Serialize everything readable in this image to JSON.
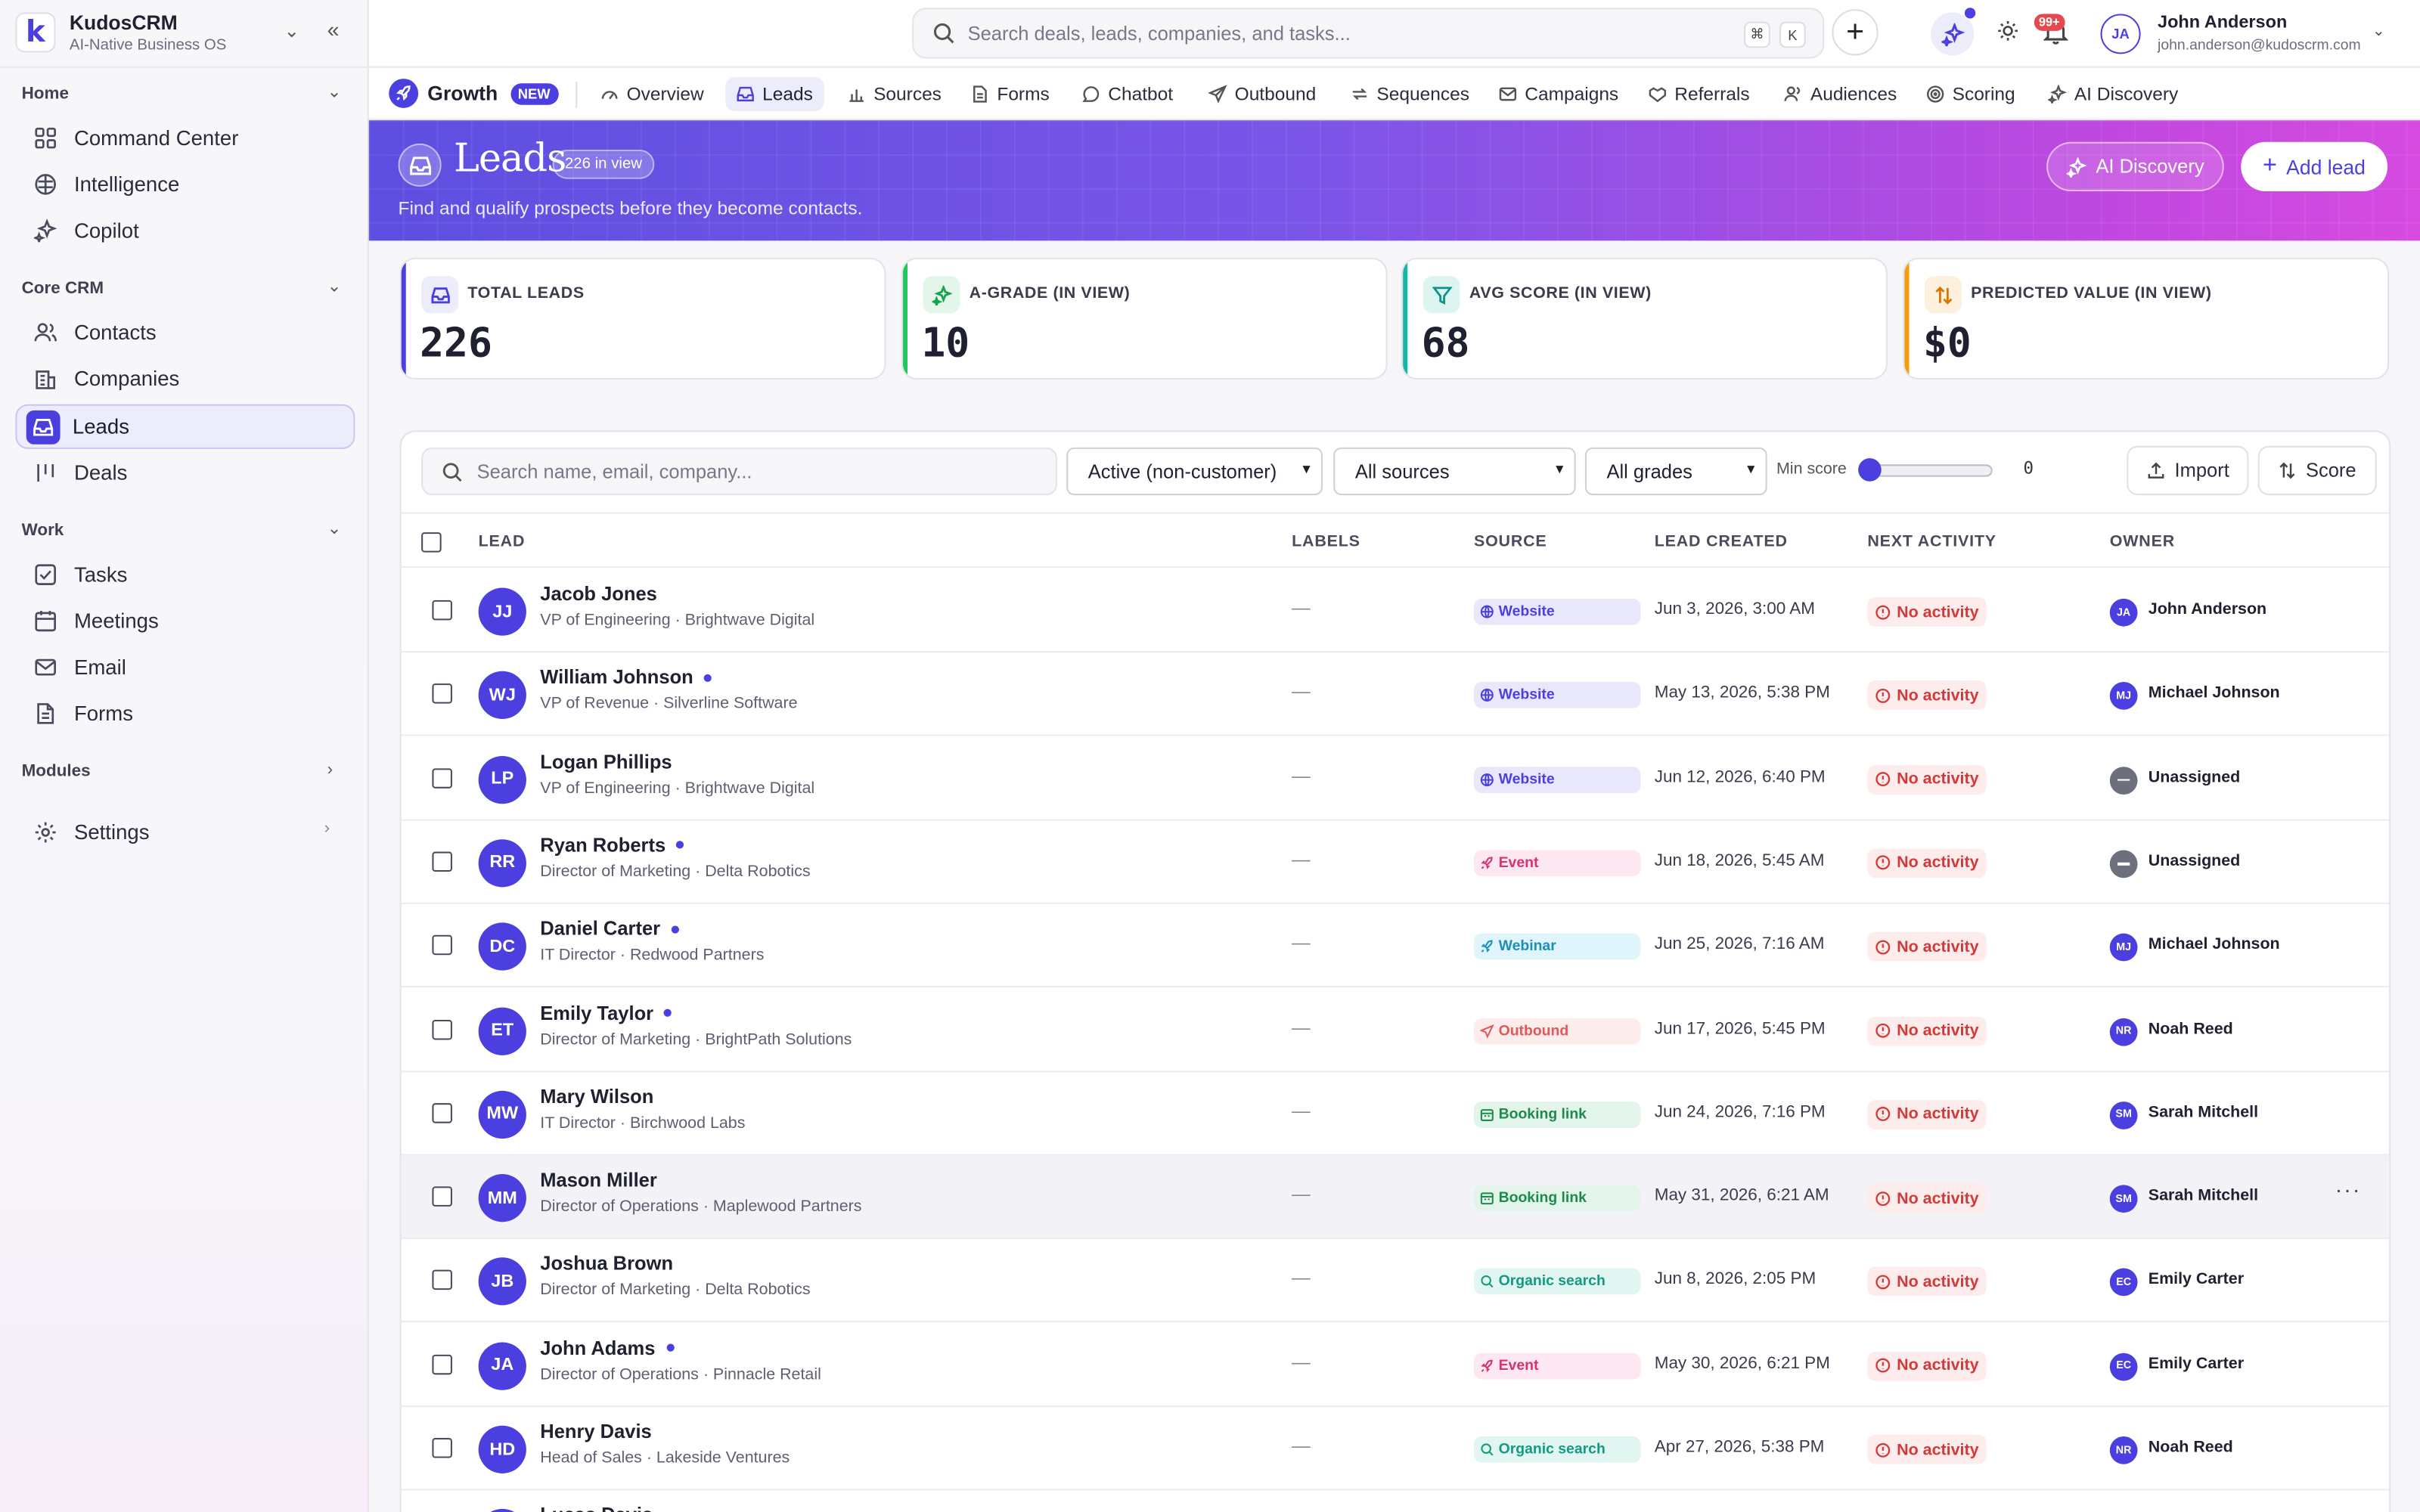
{
  "brand": {
    "name": "KudosCRM",
    "subtitle": "AI-Native Business OS",
    "logo_letter": "k"
  },
  "sidebar": {
    "sections": {
      "home": "Home",
      "core": "Core CRM",
      "work": "Work",
      "modules": "Modules"
    },
    "home_items": [
      "Command Center",
      "Intelligence",
      "Copilot"
    ],
    "core_items": [
      "Contacts",
      "Companies",
      "Leads",
      "Deals"
    ],
    "work_items": [
      "Tasks",
      "Meetings",
      "Email",
      "Forms"
    ],
    "settings": "Settings",
    "active": "Leads"
  },
  "topbar": {
    "search_placeholder": "Search deals, leads, companies, and tasks...",
    "kbd1": "⌘",
    "kbd2": "K",
    "notif_count": "99+",
    "user_initials": "JA",
    "user_name": "John Anderson",
    "user_email": "john.anderson@kudoscrm.com"
  },
  "module": {
    "name": "Growth",
    "badge": "NEW",
    "tabs": [
      "Overview",
      "Leads",
      "Sources",
      "Forms",
      "Chatbot",
      "Outbound",
      "Sequences",
      "Campaigns",
      "Referrals",
      "Audiences",
      "Scoring",
      "AI Discovery"
    ],
    "active_tab": "Leads"
  },
  "banner": {
    "title": "Leads",
    "count": "226 in view",
    "subtitle": "Find and qualify prospects before they become contacts.",
    "ai_button": "AI Discovery",
    "add_button": "Add lead"
  },
  "kpis": [
    {
      "label": "TOTAL LEADS",
      "value": "226",
      "color": "#4c3fe0"
    },
    {
      "label": "A-GRADE (IN VIEW)",
      "value": "10",
      "color": "#16a34a"
    },
    {
      "label": "AVG SCORE (IN VIEW)",
      "value": "68",
      "color": "#0d9488"
    },
    {
      "label": "PREDICTED VALUE (IN VIEW)",
      "value": "$0",
      "color": "#d97706"
    }
  ],
  "filters": {
    "search_placeholder": "Search name, email, company...",
    "status": "Active (non-customer)",
    "sources": "All sources",
    "grades": "All grades",
    "min_score_label": "Min score",
    "min_score_value": "0",
    "import_label": "Import",
    "score_label": "Score"
  },
  "table": {
    "columns": [
      "LEAD",
      "LABELS",
      "SOURCE",
      "LEAD CREATED",
      "NEXT ACTIVITY",
      "OWNER"
    ],
    "rows": [
      {
        "initials": "JJ",
        "name": "Jacob Jones",
        "dot": false,
        "title": "VP of Engineering · Brightwave Digital",
        "labels": "—",
        "source": "Website",
        "created": "Jun 3, 2026, 3:00 AM",
        "activity": "No activity",
        "owner_initials": "JA",
        "owner": "John Anderson"
      },
      {
        "initials": "WJ",
        "name": "William Johnson",
        "dot": true,
        "title": "VP of Revenue · Silverline Software",
        "labels": "—",
        "source": "Website",
        "created": "May 13, 2026, 5:38 PM",
        "activity": "No activity",
        "owner_initials": "MJ",
        "owner": "Michael Johnson"
      },
      {
        "initials": "LP",
        "name": "Logan Phillips",
        "dot": false,
        "title": "VP of Engineering · Brightwave Digital",
        "labels": "—",
        "source": "Website",
        "created": "Jun 12, 2026, 6:40 PM",
        "activity": "No activity",
        "owner_initials": "",
        "owner": "Unassigned"
      },
      {
        "initials": "RR",
        "name": "Ryan Roberts",
        "dot": true,
        "title": "Director of Marketing · Delta Robotics",
        "labels": "—",
        "source": "Event",
        "created": "Jun 18, 2026, 5:45 AM",
        "activity": "No activity",
        "owner_initials": "",
        "owner": "Unassigned"
      },
      {
        "initials": "DC",
        "name": "Daniel Carter",
        "dot": true,
        "title": "IT Director · Redwood Partners",
        "labels": "—",
        "source": "Webinar",
        "created": "Jun 25, 2026, 7:16 AM",
        "activity": "No activity",
        "owner_initials": "MJ",
        "owner": "Michael Johnson"
      },
      {
        "initials": "ET",
        "name": "Emily Taylor",
        "dot": true,
        "title": "Director of Marketing · BrightPath Solutions",
        "labels": "—",
        "source": "Outbound",
        "created": "Jun 17, 2026, 5:45 PM",
        "activity": "No activity",
        "owner_initials": "NR",
        "owner": "Noah Reed"
      },
      {
        "initials": "MW",
        "name": "Mary Wilson",
        "dot": false,
        "title": "IT Director · Birchwood Labs",
        "labels": "—",
        "source": "Booking link",
        "created": "Jun 24, 2026, 7:16 PM",
        "activity": "No activity",
        "owner_initials": "SM",
        "owner": "Sarah Mitchell"
      },
      {
        "initials": "MM",
        "name": "Mason Miller",
        "dot": false,
        "title": "Director of Operations · Maplewood Partners",
        "labels": "—",
        "source": "Booking link",
        "created": "May 31, 2026, 6:21 AM",
        "activity": "No activity",
        "owner_initials": "SM",
        "owner": "Sarah Mitchell"
      },
      {
        "initials": "JB",
        "name": "Joshua Brown",
        "dot": false,
        "title": "Director of Marketing · Delta Robotics",
        "labels": "—",
        "source": "Organic search",
        "created": "Jun 8, 2026, 2:05 PM",
        "activity": "No activity",
        "owner_initials": "EC",
        "owner": "Emily Carter"
      },
      {
        "initials": "JA",
        "name": "John Adams",
        "dot": true,
        "title": "Director of Operations · Pinnacle Retail",
        "labels": "—",
        "source": "Event",
        "created": "May 30, 2026, 6:21 PM",
        "activity": "No activity",
        "owner_initials": "EC",
        "owner": "Emily Carter"
      },
      {
        "initials": "HD",
        "name": "Henry Davis",
        "dot": false,
        "title": "Head of Sales · Lakeside Ventures",
        "labels": "—",
        "source": "Organic search",
        "created": "Apr 27, 2026, 5:38 PM",
        "activity": "No activity",
        "owner_initials": "NR",
        "owner": "Noah Reed"
      },
      {
        "initials": "LD",
        "name": "Lucas Davis",
        "dot": true,
        "title": "",
        "labels": "",
        "source": "",
        "created": "",
        "activity": "",
        "owner_initials": "",
        "owner": ""
      }
    ]
  },
  "source_styles": {
    "Website": {
      "bg": "#e9e8fb",
      "fg": "#4c3fe0"
    },
    "Event": {
      "bg": "#fde7f1",
      "fg": "#d6336c"
    },
    "Webinar": {
      "bg": "#e0f4fb",
      "fg": "#1c8fb8"
    },
    "Outbound": {
      "bg": "#fdecec",
      "fg": "#e05858"
    },
    "Booking link": {
      "bg": "#e3f5ea",
      "fg": "#1f8a4c"
    },
    "Organic search": {
      "bg": "#e2f6f1",
      "fg": "#139a7f"
    }
  }
}
